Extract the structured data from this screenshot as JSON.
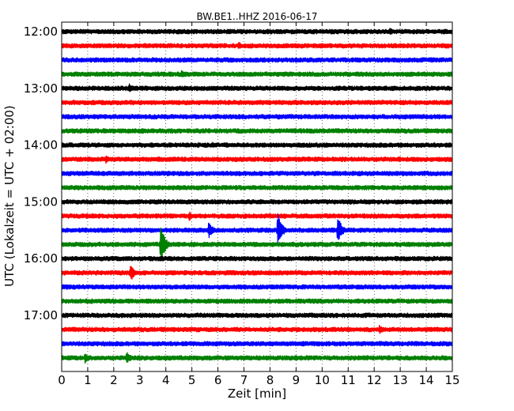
{
  "chart_data": {
    "type": "line",
    "title": "BW.BE1..HHZ 2016-06-17",
    "xlabel": "Zeit  [min]",
    "ylabel": "UTC (Lokalzeit = UTC + 02:00)",
    "xlim": [
      0,
      15
    ],
    "x_ticks": [
      "0",
      "1",
      "2",
      "3",
      "4",
      "5",
      "6",
      "7",
      "8",
      "9",
      "10",
      "11",
      "12",
      "13",
      "14",
      "15"
    ],
    "y_tick_labels": [
      "12:00",
      "13:00",
      "14:00",
      "15:00",
      "16:00",
      "17:00"
    ],
    "grid": "vertical dotted lines at each minute",
    "trace_interval_minutes": 15,
    "color_cycle": [
      "#000000",
      "#ff0000",
      "#0000ff",
      "#008000"
    ],
    "traces": [
      {
        "start": "12:00",
        "color": "#000000",
        "events": [
          {
            "t": 7.6,
            "amp": 0.25
          },
          {
            "t": 7.9,
            "amp": 0.3
          },
          {
            "t": 10.2,
            "amp": 0.2
          },
          {
            "t": 11.6,
            "amp": 0.25
          },
          {
            "t": 12.6,
            "amp": 0.45
          }
        ]
      },
      {
        "start": "12:15",
        "color": "#ff0000",
        "events": [
          {
            "t": 6.8,
            "amp": 0.45
          }
        ]
      },
      {
        "start": "12:30",
        "color": "#0000ff",
        "events": [
          {
            "t": 0.3,
            "amp": 0.2
          }
        ]
      },
      {
        "start": "12:45",
        "color": "#008000",
        "events": [
          {
            "t": 2.8,
            "amp": 0.2
          },
          {
            "t": 4.6,
            "amp": 0.45
          }
        ]
      },
      {
        "start": "13:00",
        "color": "#000000",
        "events": [
          {
            "t": 2.6,
            "amp": 0.6
          },
          {
            "t": 7.8,
            "amp": 0.2
          }
        ]
      },
      {
        "start": "13:15",
        "color": "#ff0000",
        "events": []
      },
      {
        "start": "13:30",
        "color": "#0000ff",
        "events": [
          {
            "t": 4.6,
            "amp": 0.2
          },
          {
            "t": 6.0,
            "amp": 0.2
          }
        ]
      },
      {
        "start": "13:45",
        "color": "#008000",
        "events": []
      },
      {
        "start": "14:00",
        "color": "#000000",
        "events": [
          {
            "t": 5.8,
            "amp": 0.3
          }
        ]
      },
      {
        "start": "14:15",
        "color": "#ff0000",
        "events": [
          {
            "t": 1.7,
            "amp": 0.45
          }
        ]
      },
      {
        "start": "14:30",
        "color": "#0000ff",
        "events": [
          {
            "t": 1.5,
            "amp": 0.2
          },
          {
            "t": 13.1,
            "amp": 0.35
          }
        ]
      },
      {
        "start": "14:45",
        "color": "#008000",
        "events": []
      },
      {
        "start": "15:00",
        "color": "#000000",
        "events": []
      },
      {
        "start": "15:15",
        "color": "#ff0000",
        "events": [
          {
            "t": 3.0,
            "amp": 0.25
          },
          {
            "t": 4.9,
            "amp": 0.5
          },
          {
            "t": 6.6,
            "amp": 0.2
          }
        ]
      },
      {
        "start": "15:30",
        "color": "#0000ff",
        "events": [
          {
            "t": 5.65,
            "amp": 1.0
          },
          {
            "t": 8.3,
            "amp": 2.0
          },
          {
            "t": 10.6,
            "amp": 1.6
          }
        ]
      },
      {
        "start": "15:45",
        "color": "#008000",
        "events": [
          {
            "t": 3.8,
            "amp": 2.3
          }
        ]
      },
      {
        "start": "16:00",
        "color": "#000000",
        "events": [
          {
            "t": 9.8,
            "amp": 0.2
          }
        ]
      },
      {
        "start": "16:15",
        "color": "#ff0000",
        "events": [
          {
            "t": 2.65,
            "amp": 1.0
          }
        ]
      },
      {
        "start": "16:30",
        "color": "#0000ff",
        "events": []
      },
      {
        "start": "16:45",
        "color": "#008000",
        "events": []
      },
      {
        "start": "17:00",
        "color": "#000000",
        "events": [
          {
            "t": 9.6,
            "amp": 0.25
          }
        ]
      },
      {
        "start": "17:15",
        "color": "#ff0000",
        "events": [
          {
            "t": 12.2,
            "amp": 0.6
          }
        ]
      },
      {
        "start": "17:30",
        "color": "#0000ff",
        "events": []
      },
      {
        "start": "17:45",
        "color": "#008000",
        "events": [
          {
            "t": 0.9,
            "amp": 0.6
          },
          {
            "t": 2.5,
            "amp": 0.7
          }
        ]
      }
    ]
  }
}
